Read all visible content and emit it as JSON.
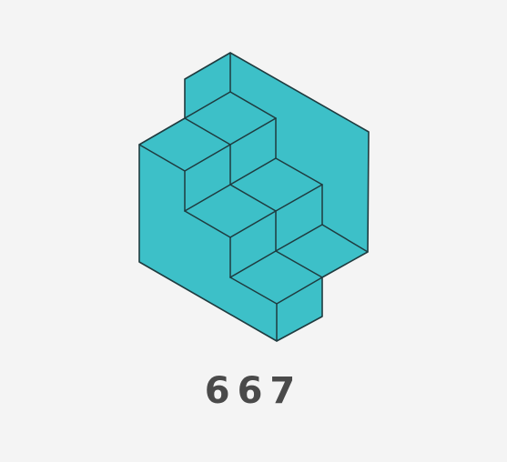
{
  "figure": {
    "fill_color": "#3dc0c8",
    "stroke_color": "#1f3b3f",
    "background_color": "#f4f4f4"
  },
  "caption": {
    "number": "667"
  }
}
